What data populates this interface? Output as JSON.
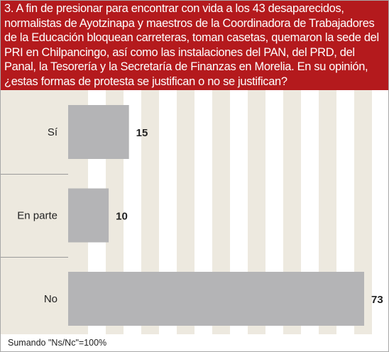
{
  "question": "3. A fin de presionar para encontrar con vida a los 43 desaparecidos, normalistas de Ayotzinapa y maestros de la Coordinadora de Trabajadores de la Educación bloquean carreteras, toman casetas, quemaron la sede del PRI en Chilpancingo, así como las instalaciones del PAN, del PRD, del Panal, la Tesorería y la Secretaría de Finanzas en Morelia. En su opinión, ¿estas formas de protesta se justifican o no se justifican?",
  "footer": "Sumando \"Ns/Nc\"=100%",
  "colors": {
    "header_bg": "#b41a1d",
    "chart_bg": "#ede9df",
    "stripe": "#ffffff",
    "bar": "#b4b4b6",
    "text": "#222222"
  },
  "chart_data": {
    "type": "bar",
    "orientation": "horizontal",
    "title": "3. A fin de presionar para encontrar con vida a los 43 desaparecidos, normalistas de Ayotzinapa y maestros de la Coordinadora de Trabajadores de la Educación bloquean carreteras, toman casetas, quemaron la sede del PRI en Chilpancingo, así como las instalaciones del PAN, del PRD, del Panal, la Tesorería y la Secretaría de Finanzas en Morelia. En su opinión, ¿estas formas de protesta se justifican o no se justifican?",
    "categories": [
      "Sí",
      "En parte",
      "No"
    ],
    "values": [
      15,
      10,
      73
    ],
    "xlim": [
      0,
      73
    ],
    "grid": true,
    "value_labels": true
  }
}
